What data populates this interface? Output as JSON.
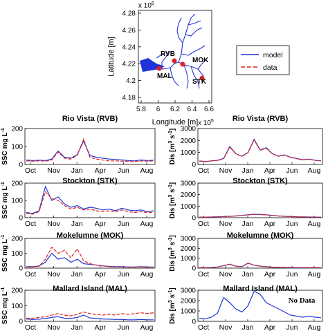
{
  "map": {
    "x_exponent": "x 10",
    "x_exponent_power": "5",
    "y_exponent": "x 10",
    "y_exponent_power": "6",
    "xlabel": "Longitude [m]",
    "ylabel": "Latitude [m]",
    "xticks": [
      "5.8",
      "6",
      "6.2",
      "6.4",
      "6.6"
    ],
    "yticks": [
      "4.28",
      "4.26",
      "4.24",
      "4.22",
      "4.2",
      "4.18"
    ],
    "station_labels": [
      "RVB",
      "MOK",
      "MAL",
      "STK"
    ],
    "legend": [
      {
        "label": "model",
        "color": "#1f35d6",
        "style": "solid"
      },
      {
        "label": "data",
        "color": "#e02020",
        "style": "dashed"
      }
    ]
  },
  "colors": {
    "model": "#1f35d6",
    "data": "#e02020"
  },
  "months": [
    "Oct",
    "Nov",
    "Jan",
    "Apr",
    "Jun",
    "Aug"
  ],
  "chart_data": [
    {
      "type": "line",
      "title": "Rio Vista (RVB)",
      "ylabel": "SSC mg L",
      "ylabel_sup": "-1",
      "ylim": [
        0,
        200
      ],
      "yticks": [
        "0",
        "100",
        "200"
      ],
      "x": [
        0,
        5,
        10,
        15,
        20,
        25,
        30,
        35,
        40,
        45,
        50,
        55,
        60,
        65,
        70,
        75,
        80,
        85,
        90,
        95,
        100
      ],
      "series": [
        {
          "name": "model",
          "values": [
            25,
            22,
            24,
            22,
            30,
            75,
            40,
            35,
            55,
            130,
            50,
            40,
            35,
            30,
            28,
            25,
            22,
            20,
            25,
            22,
            24
          ]
        },
        {
          "name": "data",
          "values": [
            20,
            18,
            20,
            18,
            25,
            70,
            35,
            30,
            50,
            140,
            40,
            30,
            25,
            20,
            20,
            18,
            18,
            16,
            20,
            18,
            20
          ]
        }
      ]
    },
    {
      "type": "line",
      "title": "Rio Vista (RVB)",
      "ylabel": "Dis [m",
      "ylabel_sup": "3",
      "ylabel_tail": " s",
      "ylabel_sup2": "-1",
      "ylabel_end": "]",
      "ylim": [
        0,
        3000
      ],
      "yticks": [
        "0",
        "1000",
        "2000",
        "3000"
      ],
      "x": [
        0,
        5,
        10,
        15,
        20,
        25,
        30,
        35,
        40,
        45,
        50,
        55,
        60,
        65,
        70,
        75,
        80,
        85,
        90,
        95,
        100
      ],
      "series": [
        {
          "name": "model",
          "values": [
            300,
            250,
            300,
            350,
            500,
            1500,
            900,
            700,
            1000,
            2100,
            1200,
            1400,
            900,
            700,
            800,
            600,
            500,
            400,
            450,
            350,
            300
          ]
        },
        {
          "name": "data",
          "values": [
            280,
            240,
            290,
            330,
            480,
            1450,
            880,
            680,
            980,
            2050,
            1180,
            1350,
            880,
            680,
            780,
            580,
            480,
            380,
            430,
            340,
            290
          ]
        }
      ]
    },
    {
      "type": "line",
      "title": "Stockton (STK)",
      "ylabel": "SSC mg L",
      "ylabel_sup": "-1",
      "ylim": [
        0,
        200
      ],
      "yticks": [
        "0",
        "100",
        "200"
      ],
      "x": [
        0,
        5,
        10,
        15,
        20,
        25,
        30,
        35,
        40,
        45,
        50,
        55,
        60,
        65,
        70,
        75,
        80,
        85,
        90,
        95,
        100
      ],
      "series": [
        {
          "name": "model",
          "values": [
            30,
            25,
            40,
            180,
            100,
            120,
            80,
            60,
            70,
            50,
            60,
            55,
            45,
            50,
            40,
            55,
            45,
            40,
            45,
            35,
            40
          ]
        },
        {
          "name": "data",
          "values": [
            25,
            20,
            35,
            150,
            110,
            100,
            70,
            50,
            60,
            45,
            50,
            40,
            35,
            40,
            35,
            45,
            35,
            30,
            35,
            30,
            30
          ]
        }
      ]
    },
    {
      "type": "line",
      "title": "Stockton (STK)",
      "ylabel": "Dis [m",
      "ylabel_sup": "3",
      "ylabel_tail": " s",
      "ylabel_sup2": "-1",
      "ylabel_end": "]",
      "ylim": [
        0,
        3000
      ],
      "yticks": [
        "0",
        "1000",
        "2000",
        "3000"
      ],
      "x": [
        0,
        5,
        10,
        15,
        20,
        25,
        30,
        35,
        40,
        45,
        50,
        55,
        60,
        65,
        70,
        75,
        80,
        85,
        90,
        95,
        100
      ],
      "series": [
        {
          "name": "model",
          "values": [
            50,
            50,
            60,
            80,
            100,
            120,
            150,
            200,
            250,
            300,
            280,
            250,
            200,
            150,
            120,
            100,
            80,
            70,
            60,
            55,
            50
          ]
        },
        {
          "name": "data",
          "values": [
            45,
            45,
            55,
            75,
            95,
            115,
            140,
            190,
            240,
            290,
            270,
            240,
            190,
            140,
            115,
            95,
            75,
            65,
            55,
            50,
            45
          ]
        }
      ]
    },
    {
      "type": "line",
      "title": "Mokelumne (MOK)",
      "ylabel": "SSC mg L",
      "ylabel_sup": "-1",
      "ylim": [
        0,
        200
      ],
      "yticks": [
        "0",
        "100",
        "200"
      ],
      "x": [
        0,
        5,
        10,
        15,
        20,
        25,
        30,
        35,
        40,
        45,
        50,
        55,
        60,
        65,
        70,
        75,
        80,
        85,
        90,
        95,
        100
      ],
      "series": [
        {
          "name": "model",
          "values": [
            10,
            10,
            15,
            40,
            100,
            60,
            70,
            40,
            60,
            30,
            25,
            20,
            15,
            12,
            10,
            10,
            8,
            8,
            10,
            8,
            8
          ]
        },
        {
          "name": "data",
          "values": [
            8,
            8,
            12,
            60,
            140,
            100,
            120,
            70,
            130,
            50,
            30,
            20,
            15,
            10,
            8,
            8,
            6,
            6,
            8,
            6,
            6
          ]
        }
      ]
    },
    {
      "type": "line",
      "title": "Mokelumne (MOK)",
      "ylabel": "Dis [m",
      "ylabel_sup": "3",
      "ylabel_tail": " s",
      "ylabel_sup2": "-1",
      "ylabel_end": "]",
      "ylim": [
        0,
        3000
      ],
      "yticks": [
        "0",
        "1000",
        "2000",
        "3000"
      ],
      "x": [
        0,
        5,
        10,
        15,
        20,
        25,
        30,
        35,
        40,
        45,
        50,
        55,
        60,
        65,
        70,
        75,
        80,
        85,
        90,
        95,
        100
      ],
      "series": [
        {
          "name": "model",
          "values": [
            50,
            50,
            60,
            120,
            250,
            400,
            200,
            150,
            500,
            300,
            200,
            150,
            100,
            80,
            70,
            60,
            50,
            50,
            50,
            50,
            50
          ]
        },
        {
          "name": "data",
          "values": [
            45,
            45,
            55,
            110,
            240,
            380,
            190,
            140,
            480,
            290,
            190,
            140,
            95,
            75,
            65,
            55,
            45,
            45,
            45,
            45,
            45
          ]
        }
      ]
    },
    {
      "type": "line",
      "title": "Mallard Island (MAL)",
      "ylabel": "SSC mg L",
      "ylabel_sup": "-1",
      "ylim": [
        0,
        200
      ],
      "yticks": [
        "0",
        "100",
        "200"
      ],
      "x": [
        0,
        5,
        10,
        15,
        20,
        25,
        30,
        35,
        40,
        45,
        50,
        55,
        60,
        65,
        70,
        75,
        80,
        85,
        90,
        95,
        100
      ],
      "series": [
        {
          "name": "model",
          "values": [
            15,
            12,
            14,
            18,
            25,
            30,
            20,
            18,
            25,
            40,
            22,
            18,
            15,
            14,
            12,
            12,
            10,
            10,
            12,
            10,
            10
          ]
        },
        {
          "name": "data",
          "values": [
            20,
            20,
            25,
            30,
            40,
            50,
            40,
            35,
            45,
            60,
            50,
            45,
            40,
            45,
            40,
            50,
            45,
            50,
            55,
            50,
            55
          ]
        }
      ]
    },
    {
      "type": "line",
      "title": "Mallard Island (MAL)",
      "ylabel": "Dis [m",
      "ylabel_sup": "3",
      "ylabel_tail": " s",
      "ylabel_sup2": "-1",
      "ylabel_end": "]",
      "annotation": "No Data",
      "ylim": [
        0,
        3000
      ],
      "yticks": [
        "0",
        "1000",
        "2000",
        "3000"
      ],
      "x": [
        0,
        5,
        10,
        15,
        20,
        25,
        30,
        35,
        40,
        45,
        50,
        55,
        60,
        65,
        70,
        75,
        80,
        85,
        90,
        95,
        100
      ],
      "series": [
        {
          "name": "model",
          "values": [
            300,
            250,
            400,
            800,
            2300,
            1800,
            1200,
            900,
            1500,
            2900,
            2600,
            1800,
            1500,
            1200,
            900,
            600,
            500,
            400,
            500,
            400,
            350
          ]
        }
      ]
    }
  ]
}
